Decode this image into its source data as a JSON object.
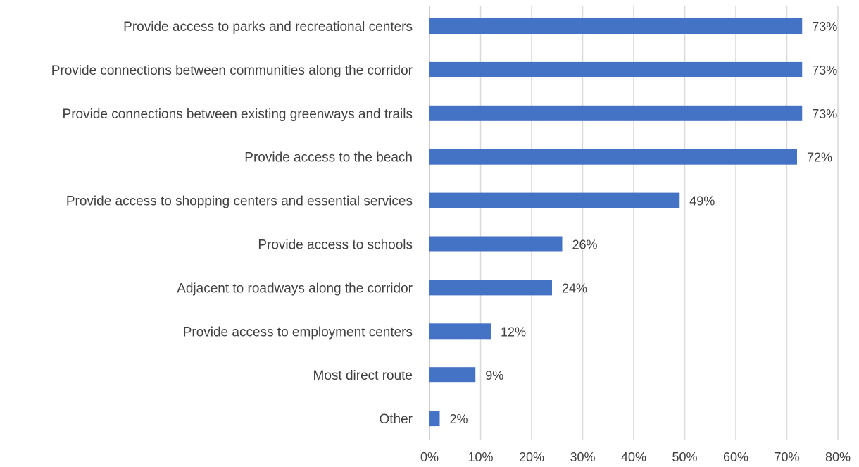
{
  "chart_data": {
    "type": "bar",
    "orientation": "horizontal",
    "categories": [
      "Provide access to parks and recreational centers",
      "Provide connections between communities along the corridor",
      "Provide connections between existing greenways and trails",
      "Provide access to the beach",
      "Provide access to shopping centers and essential services",
      "Provide access to schools",
      "Adjacent to roadways along the corridor",
      "Provide access to employment centers",
      "Most direct route",
      "Other"
    ],
    "values": [
      73,
      73,
      73,
      72,
      49,
      26,
      24,
      12,
      9,
      2
    ],
    "data_labels": [
      "73%",
      "73%",
      "73%",
      "72%",
      "49%",
      "26%",
      "24%",
      "12%",
      "9%",
      "2%"
    ],
    "xlim": [
      0,
      80
    ],
    "xticks": [
      0,
      10,
      20,
      30,
      40,
      50,
      60,
      70,
      80
    ],
    "xtick_labels": [
      "0%",
      "10%",
      "20%",
      "30%",
      "40%",
      "50%",
      "60%",
      "70%",
      "80%"
    ],
    "title": "",
    "xlabel": "",
    "ylabel": "",
    "grid": "vertical",
    "legend": "none",
    "bar_color": "#4472c4"
  }
}
